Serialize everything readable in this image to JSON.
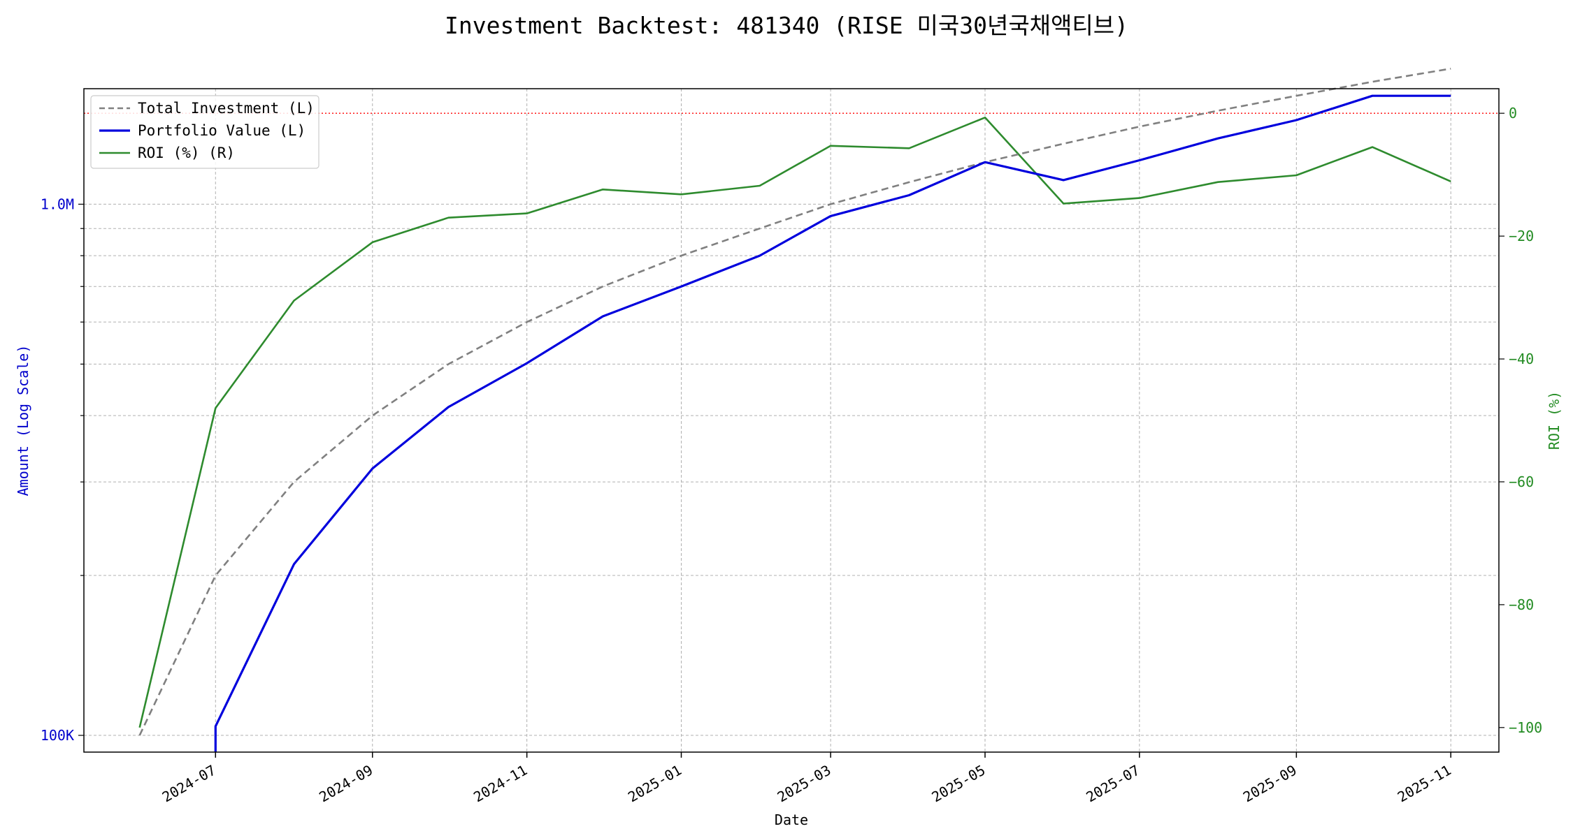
{
  "chart_data": {
    "type": "line",
    "title": "Investment Backtest: 481340 (RISE 미국30년국채액티브)",
    "xlabel": "Date",
    "ylabel_left": "Amount (Log Scale)",
    "ylabel_right": "ROI (%)",
    "left_scale": "log",
    "left_ylim": [
      93000,
      1650000
    ],
    "right_ylim": [
      -104,
      4
    ],
    "xlim": [
      "2024-05-10",
      "2025-11-20"
    ],
    "x_ticks": [
      "2024-07",
      "2024-09",
      "2024-11",
      "2025-01",
      "2025-03",
      "2025-05",
      "2025-07",
      "2025-09",
      "2025-11"
    ],
    "left_ticks": [
      {
        "value": 100000,
        "label": "100K"
      },
      {
        "value": 1000000,
        "label": "1.0M"
      }
    ],
    "right_ticks": [
      {
        "value": 0,
        "label": "0"
      },
      {
        "value": -20,
        "label": "−20"
      },
      {
        "value": -40,
        "label": "−40"
      },
      {
        "value": -60,
        "label": "−60"
      },
      {
        "value": -80,
        "label": "−80"
      },
      {
        "value": -100,
        "label": "−100"
      }
    ],
    "grid": true,
    "legend_position": "top-left",
    "reference_line": {
      "axis": "right",
      "value": 0,
      "color": "#ff0000",
      "style": "dotted"
    },
    "dates": [
      "2024-06-01",
      "2024-07-01",
      "2024-08-01",
      "2024-09-01",
      "2024-10-01",
      "2024-11-01",
      "2024-12-01",
      "2025-01-01",
      "2025-02-01",
      "2025-03-01",
      "2025-04-01",
      "2025-05-01",
      "2025-06-01",
      "2025-07-01",
      "2025-08-01",
      "2025-09-01",
      "2025-10-01",
      "2025-11-01"
    ],
    "series": [
      {
        "name": "Total Investment (L)",
        "axis": "left",
        "color": "#808080",
        "style": "dashed",
        "values": [
          100000,
          200000,
          300000,
          400000,
          500000,
          600000,
          700000,
          800000,
          900000,
          1000000,
          1100000,
          1200000,
          1300000,
          1400000,
          1500000,
          1600000,
          1700000,
          1800000
        ]
      },
      {
        "name": "Portfolio Value (L)",
        "axis": "left",
        "color": "#0000dd",
        "style": "solid",
        "start_drop_to": 90000,
        "values": [
          null,
          104000,
          210000,
          318000,
          415000,
          502000,
          615000,
          700000,
          800000,
          950000,
          1040000,
          1200000,
          1110000,
          1210000,
          1330000,
          1440000,
          1600000,
          1600000
        ]
      },
      {
        "name": "ROI (%) (R)",
        "axis": "right",
        "color": "#2e8b2e",
        "style": "solid",
        "values": [
          -100,
          -48,
          -30.5,
          -21,
          -17,
          -16.3,
          -12.4,
          -13.2,
          -11.8,
          -5.3,
          -5.7,
          -0.7,
          -14.7,
          -13.8,
          -11.2,
          -10.1,
          -5.5,
          -11.1
        ]
      }
    ]
  }
}
